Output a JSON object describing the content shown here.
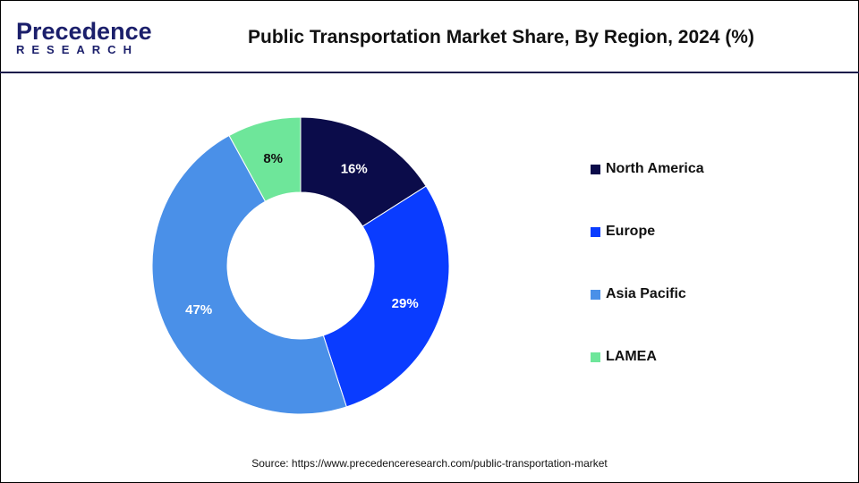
{
  "header": {
    "logo_line1": "Precedence",
    "logo_line2": "RESEARCH",
    "title": "Public Transportation Market Share, By Region, 2024 (%)"
  },
  "chart_data": {
    "type": "pie",
    "variant": "donut",
    "title": "Public Transportation Market Share, By Region, 2024 (%)",
    "categories": [
      "North America",
      "Europe",
      "Asia Pacific",
      "LAMEA"
    ],
    "values": [
      16,
      29,
      47,
      8
    ],
    "labels": [
      "16%",
      "29%",
      "47%",
      "8%"
    ],
    "colors": [
      "#0b0c4a",
      "#0a3cff",
      "#4a90e8",
      "#6ee69a"
    ],
    "legend_position": "right"
  },
  "source": "Source: https://www.precedenceresearch.com/public-transportation-market"
}
